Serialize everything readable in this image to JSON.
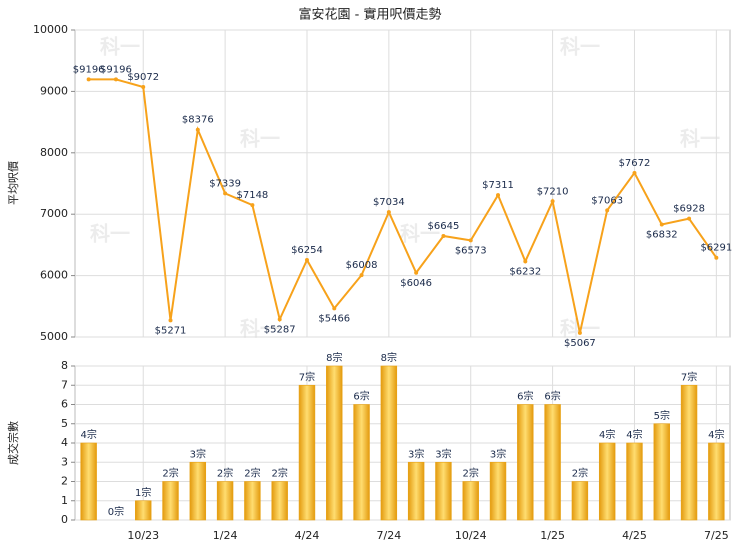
{
  "watermark": "科一",
  "chart_data": [
    {
      "type": "line",
      "title": "富安花園 - 實用呎價走勢",
      "y_label": "平均呎價",
      "categories": [
        null,
        null,
        "10/23",
        null,
        null,
        "1/24",
        null,
        null,
        "4/24",
        null,
        null,
        "7/24",
        null,
        null,
        "10/24",
        null,
        null,
        "1/25",
        null,
        null,
        "4/25",
        null,
        null,
        "7/25"
      ],
      "values": [
        9196,
        9196,
        9072,
        5271,
        8376,
        7339,
        7148,
        5287,
        6254,
        5466,
        6008,
        7034,
        6046,
        6645,
        6573,
        7311,
        6232,
        7210,
        5067,
        7063,
        7672,
        6832,
        6928,
        6291
      ],
      "value_labels": [
        "$9196",
        "$9196",
        "$9072",
        "$5271",
        "$8376",
        "$7339",
        "$7148",
        "$5287",
        "$6254",
        "$5466",
        "$6008",
        "$7034",
        "$6046",
        "$6645",
        "$6573",
        "$7311",
        "$6232",
        "$7210",
        "$5067",
        "$7063",
        "$7672",
        "$6832",
        "$6928",
        "$6291"
      ],
      "color": "#f7a21b",
      "ylim": [
        5000,
        10000
      ],
      "yticks": [
        5000,
        6000,
        7000,
        8000,
        9000,
        10000
      ],
      "grid": true
    },
    {
      "type": "bar",
      "y_label": "成交宗數",
      "categories": [
        null,
        null,
        "10/23",
        null,
        null,
        "1/24",
        null,
        null,
        "4/24",
        null,
        null,
        "7/24",
        null,
        null,
        "10/24",
        null,
        null,
        "1/25",
        null,
        null,
        "4/25",
        null,
        null,
        "7/25"
      ],
      "values": [
        4,
        0,
        1,
        2,
        3,
        2,
        2,
        2,
        7,
        8,
        6,
        8,
        3,
        3,
        2,
        3,
        6,
        6,
        2,
        4,
        4,
        5,
        7,
        4
      ],
      "value_labels": [
        "4宗",
        "0宗",
        "1宗",
        "2宗",
        "3宗",
        "2宗",
        "2宗",
        "2宗",
        "7宗",
        "8宗",
        "6宗",
        "8宗",
        "3宗",
        "3宗",
        "2宗",
        "3宗",
        "6宗",
        "6宗",
        "2宗",
        "4宗",
        "4宗",
        "5宗",
        "7宗",
        "4宗"
      ],
      "color": "#e8a317",
      "ylim": [
        0,
        8
      ],
      "yticks": [
        0,
        1,
        2,
        3,
        4,
        5,
        6,
        7,
        8
      ],
      "grid": true
    }
  ]
}
